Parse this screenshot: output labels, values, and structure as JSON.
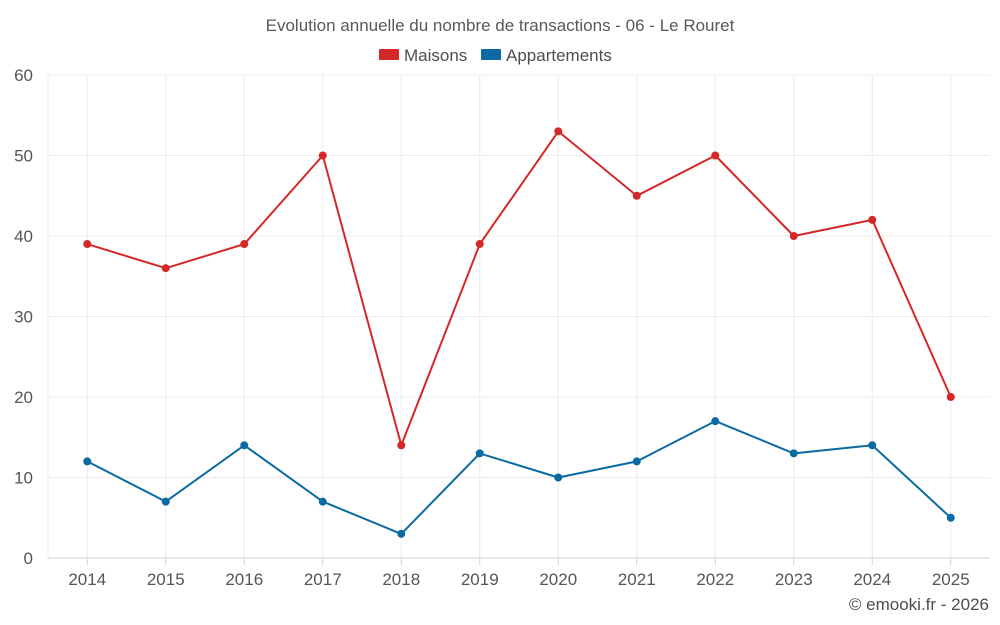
{
  "chart_data": {
    "type": "line",
    "title": "Evolution annuelle du nombre de transactions - 06 - Le Rouret",
    "categories": [
      "2014",
      "2015",
      "2016",
      "2017",
      "2018",
      "2019",
      "2020",
      "2021",
      "2022",
      "2023",
      "2024",
      "2025"
    ],
    "series": [
      {
        "name": "Maisons",
        "color": "#d62728",
        "values": [
          39,
          36,
          39,
          50,
          14,
          39,
          53,
          45,
          50,
          40,
          42,
          20
        ]
      },
      {
        "name": "Appartements",
        "color": "#0b6aa2",
        "values": [
          12,
          7,
          14,
          7,
          3,
          13,
          10,
          12,
          17,
          13,
          14,
          5
        ]
      }
    ],
    "yticks": [
      "0",
      "10",
      "20",
      "30",
      "40",
      "50",
      "60"
    ],
    "ylim": [
      0,
      60
    ],
    "xlabel": "",
    "ylabel": "",
    "grid": true,
    "legend_position": "top-center"
  },
  "credit": "© emooki.fr - 2026"
}
